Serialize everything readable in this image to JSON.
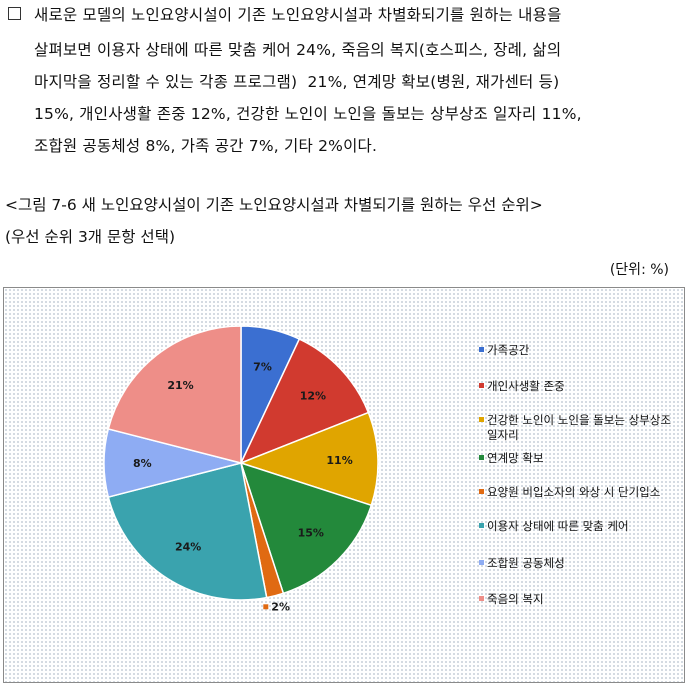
{
  "paragraph": {
    "bullet": "□",
    "lines": [
      "새로운 모델의 노인요양시설이 기존 노인요양시설과 차별화되기를 원하는 내용을",
      "살펴보면 이용자 상태에 따른 맞춤 케어 24%, 죽음의 복지(호스피스, 장례, 삶의",
      "마지막을 정리할 수 있는 각종 프로그램)  21%, 연계망 확보(병원, 재가센터 등)",
      "15%, 개인사생활 존중 12%, 건강한 노인이 노인을 돌보는 상부상조 일자리 11%,",
      "조합원 공동체성 8%, 가족 공간 7%, 기타 2%이다."
    ]
  },
  "figure": {
    "title": "<그림 7-6 새 노인요양시설이 기존 노인요양시설과 차별되기를 원하는 우선 순위>",
    "subtitle": "(우선 순위 3개 문항 선택)",
    "unit": "(단위: %)"
  },
  "chart_data": {
    "type": "pie",
    "start": "12 o'clock",
    "direction": "clockwise",
    "legend_position": "right",
    "slices": [
      {
        "label": "가족공간",
        "value": 7,
        "data_label": "7%",
        "color": "#3b6fd1"
      },
      {
        "label": "개인사생활 존중",
        "value": 12,
        "data_label": "12%",
        "color": "#d13a2f"
      },
      {
        "label": "건강한 노인이 노인을 돌보는 상부상조 일자리",
        "value": 11,
        "data_label": "11%",
        "color": "#e0a500"
      },
      {
        "label": "연계망 확보",
        "value": 15,
        "data_label": "15%",
        "color": "#23893b"
      },
      {
        "label": "요양원 비입소자의 와상 시 단기입소",
        "value": 2,
        "data_label": "2%",
        "color": "#e06a12"
      },
      {
        "label": "이용자 상태에 따른 맞춤 케어",
        "value": 24,
        "data_label": "24%",
        "color": "#3aa3ae"
      },
      {
        "label": "조합원 공동체성",
        "value": 8,
        "data_label": "8%",
        "color": "#8eacf3"
      },
      {
        "label": "죽음의 복지",
        "value": 21,
        "data_label": "21%",
        "color": "#ee8e88"
      }
    ]
  }
}
